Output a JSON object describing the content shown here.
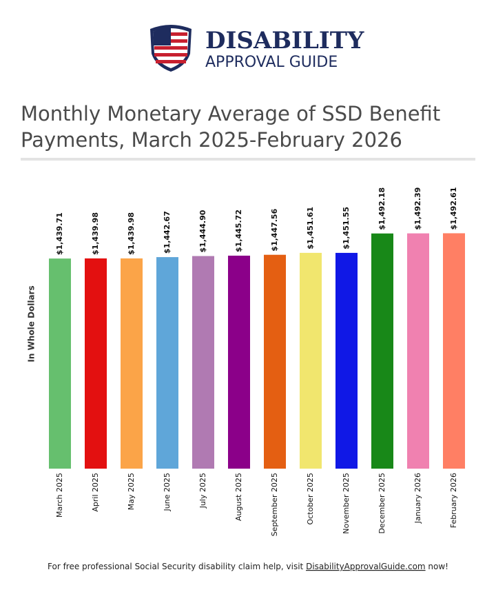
{
  "brand": {
    "name": "DISABILITY",
    "tagline": "APPROVAL GUIDE"
  },
  "chart_data": {
    "type": "bar",
    "title": [
      "Monthly Monetary Average of SSD Benefit",
      "Payments, March 2025-February 2026"
    ],
    "y_label": "In Whole Dollars",
    "categories": [
      "March 2025",
      "April 2025",
      "May 2025",
      "June 2025",
      "July 2025",
      "August 2025",
      "September 2025",
      "October 2025",
      "November 2025",
      "December 2025",
      "January 2026",
      "February 2026"
    ],
    "values": [
      1439.71,
      1439.98,
      1439.98,
      1442.67,
      1444.9,
      1445.72,
      1447.56,
      1451.61,
      1451.55,
      1492.18,
      1492.39,
      1492.61
    ],
    "value_labels": [
      "$1,439.71",
      "$1,439.98",
      "$1,439.98",
      "$1,442.67",
      "$1,444.90",
      "$1,445.72",
      "$1,447.56",
      "$1,451.61",
      "$1,451.55",
      "$1,492.18",
      "$1,492.39",
      "$1,492.61"
    ],
    "colors": [
      "#66bf6e",
      "#e31010",
      "#fba448",
      "#5fa6d9",
      "#b07ab2",
      "#8b0089",
      "#e45f12",
      "#f1e66e",
      "#1018e6",
      "#188818",
      "#f081b0",
      "#ff7f64"
    ],
    "ylim": [
      1000,
      1600
    ]
  },
  "footer": {
    "text": "For free professional Social Security disability claim help, visit ",
    "link": "DisabilityApprovalGuide.com",
    "end": " now!"
  }
}
